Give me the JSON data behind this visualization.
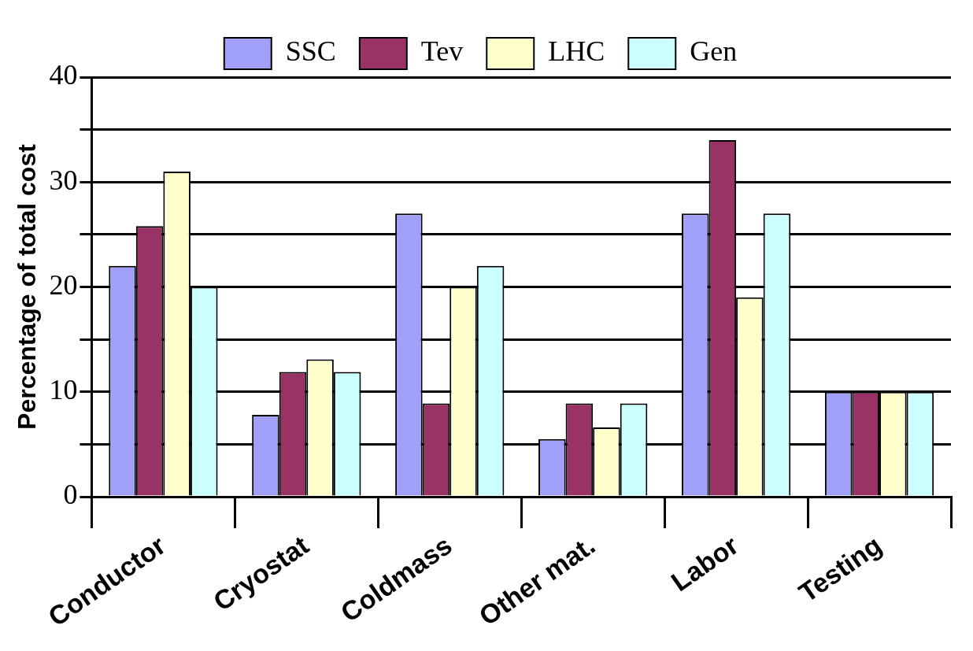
{
  "chart_data": {
    "type": "bar",
    "ylabel": "Percentage of total cost",
    "categories": [
      "Conductor",
      "Cryostat",
      "Coldmass",
      "Other mat.",
      "Labor",
      "Testing"
    ],
    "series": [
      {
        "name": "SSC",
        "color": "#a0a0f8",
        "values": [
          22,
          7.8,
          27,
          5.5,
          27,
          10
        ]
      },
      {
        "name": "Tev",
        "color": "#993366",
        "values": [
          25.8,
          11.9,
          8.9,
          8.9,
          34,
          10
        ]
      },
      {
        "name": "LHC",
        "color": "#ffffcc",
        "values": [
          31,
          13.1,
          20,
          6.6,
          19,
          10
        ]
      },
      {
        "name": "Gen",
        "color": "#ccffff",
        "values": [
          20,
          11.9,
          22,
          8.9,
          27,
          10
        ]
      }
    ],
    "ylim": [
      0,
      40
    ],
    "yticks": [
      0,
      {
        "value": 5,
        "label": null
      },
      10,
      {
        "value": 15,
        "label": null
      },
      20,
      {
        "value": 25,
        "label": null
      },
      30,
      {
        "value": 35,
        "label": null
      },
      40
    ],
    "grid": "y",
    "legend": "top"
  }
}
